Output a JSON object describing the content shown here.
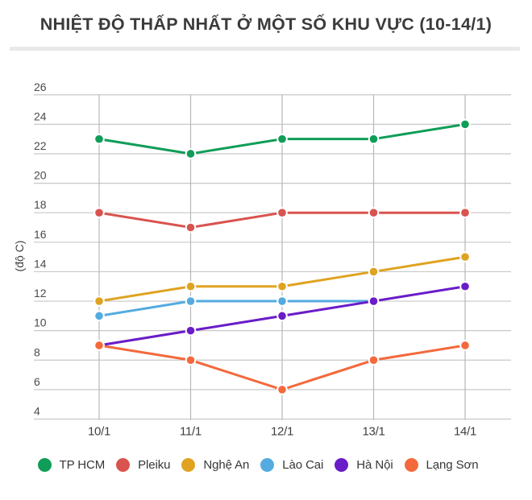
{
  "chart_data": {
    "type": "line",
    "title": "NHIỆT ĐỘ THẤP NHẤT Ở MỘT SỐ KHU VỰC (10-14/1)",
    "xlabel": "",
    "ylabel": "(độ C)",
    "categories": [
      "10/1",
      "11/1",
      "12/1",
      "13/1",
      "14/1"
    ],
    "ylim": [
      4,
      26
    ],
    "y_tick_step": 2,
    "grid": true,
    "legend_position": "bottom",
    "series": [
      {
        "name": "TP HCM",
        "color": "#0f9d58",
        "values": [
          23,
          22,
          23,
          23,
          24
        ]
      },
      {
        "name": "Pleiku",
        "color": "#d9534f",
        "values": [
          18,
          17,
          18,
          18,
          18
        ]
      },
      {
        "name": "Nghệ An",
        "color": "#dfa321",
        "values": [
          12,
          13,
          13,
          14,
          15
        ]
      },
      {
        "name": "Lào Cai",
        "color": "#54abdf",
        "values": [
          11,
          12,
          12,
          12,
          null
        ]
      },
      {
        "name": "Hà Nội",
        "color": "#6a1cc8",
        "values": [
          9,
          10,
          11,
          12,
          13
        ]
      },
      {
        "name": "Lạng Sơn",
        "color": "#f3693c",
        "values": [
          9,
          8,
          6,
          8,
          9
        ]
      }
    ],
    "colors": {
      "grid_horizontal": "#c8c8c8",
      "grid_vertical": "#b7b7b7",
      "y_tick_text": "#4b4b4b",
      "x_tick_text": "#3f3f3f",
      "title_text": "#3b3b3b",
      "divider": "#e9e9e9"
    }
  }
}
